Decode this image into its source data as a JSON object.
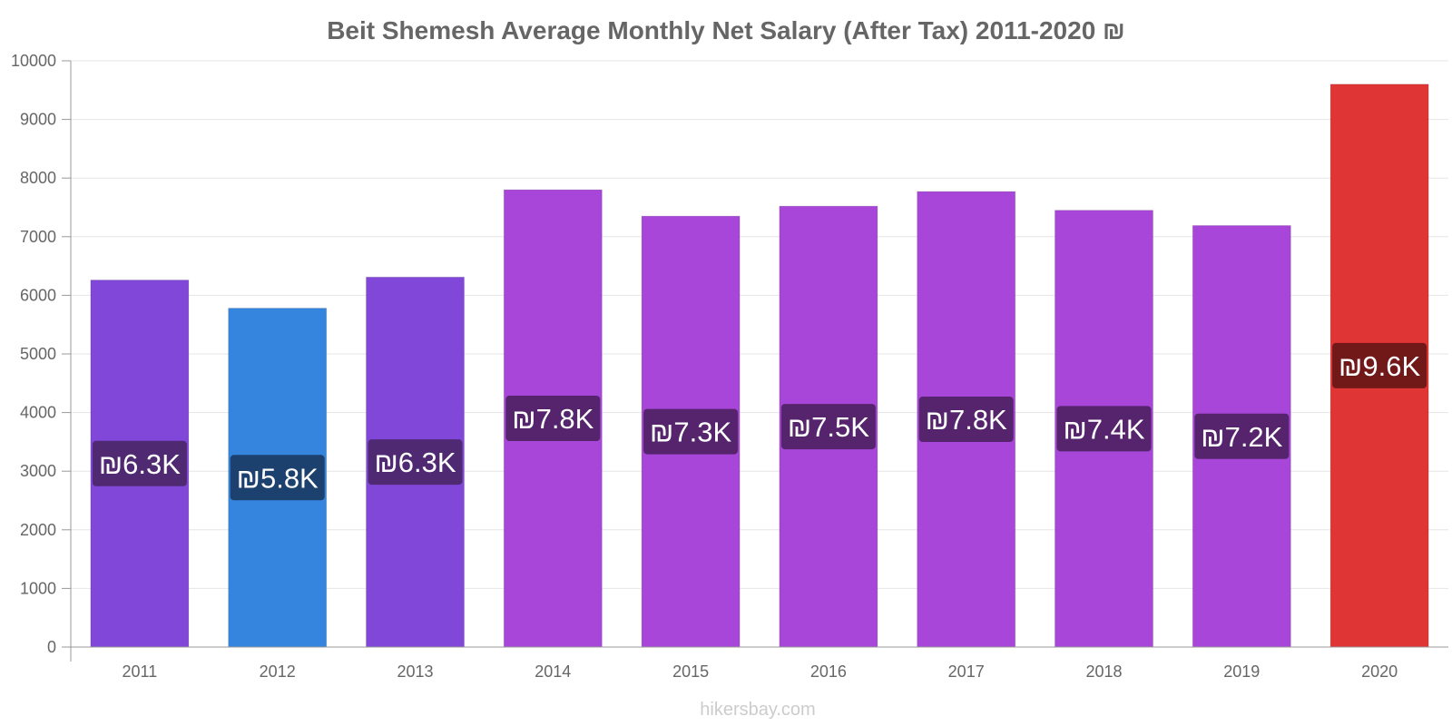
{
  "chart_data": {
    "type": "bar",
    "title": "Beit Shemesh Average Monthly Net Salary (After Tax) 2011-2020 ₪",
    "categories": [
      "2011",
      "2012",
      "2013",
      "2014",
      "2015",
      "2016",
      "2017",
      "2018",
      "2019",
      "2020"
    ],
    "values": [
      6260,
      5780,
      6310,
      7800,
      7350,
      7520,
      7770,
      7450,
      7190,
      9600
    ],
    "data_labels": [
      "₪6.3K",
      "₪5.8K",
      "₪6.3K",
      "₪7.8K",
      "₪7.3K",
      "₪7.5K",
      "₪7.8K",
      "₪7.4K",
      "₪7.2K",
      "₪9.6K"
    ],
    "ylim": [
      0,
      10000
    ],
    "yticks": [
      "0",
      "1000",
      "2000",
      "3000",
      "4000",
      "5000",
      "6000",
      "7000",
      "8000",
      "9000",
      "10000"
    ],
    "xlabel": "",
    "ylabel": "",
    "grid": true,
    "bar_colors": [
      "#8047d9",
      "#3585de",
      "#8047d9",
      "#a746d9",
      "#a746d9",
      "#a746d9",
      "#a746d9",
      "#a746d9",
      "#a746d9",
      "#e03535"
    ],
    "label_bg_colors": [
      "#4f2a72",
      "#1c416e",
      "#4f2a72",
      "#56246d",
      "#56246d",
      "#56246d",
      "#56246d",
      "#56246d",
      "#56246d",
      "#711818"
    ]
  },
  "watermark": "hikersbay.com"
}
